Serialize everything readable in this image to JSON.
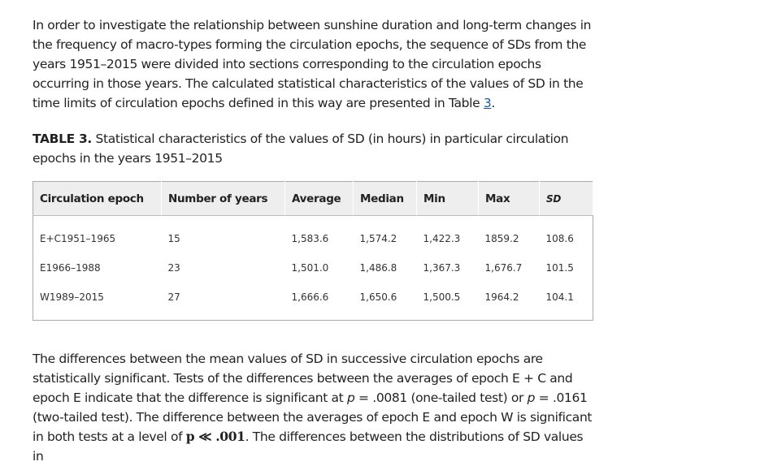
{
  "paragraphs": [
    {
      "runs": [
        "In order to investigate the relationship between sunshine duration and long-term changes in the frequency of macro-types forming the circulation epochs, the sequence of SDs from the years 1951–2015 were divided into sections corresponding to the circulation epochs occurring in those years. The calculated statistical characteristics of the values of SD in the time limits of circulation epochs defined in this way are presented in Table ",
        "3",
        "."
      ]
    },
    {
      "runs": [
        "The differences between the mean values of SD in successive circulation epochs are statistically significant. Tests of the differences between the averages of epoch E + C and epoch E indicate that the difference is significant at ",
        "p",
        " = .0081 (one-tailed test) or ",
        "p",
        " = .0161 (two-tailed test). The difference between the averages of epoch E and epoch W is significant in both tests at a level of ",
        "p ≪ .001",
        ". The differences between the distributions of SD values in"
      ]
    }
  ],
  "table": {
    "label": "TABLE 3.",
    "caption": "Statistical characteristics of the values of SD (in hours) in particular circulation epochs in the years 1951–2015",
    "headers": [
      "Circulation epoch",
      "Number of years",
      "Average",
      "Median",
      "Min",
      "Max",
      "SD"
    ],
    "rows": [
      [
        "E+C1951–1965",
        "15",
        "1,583.6",
        "1,574.2",
        "1,422.3",
        "1859.2",
        "108.6"
      ],
      [
        "E1966–1988",
        "23",
        "1,501.0",
        "1,486.8",
        "1,367.3",
        "1,676.7",
        "101.5"
      ],
      [
        "W1989–2015",
        "27",
        "1,666.6",
        "1,650.6",
        "1,500.5",
        "1964.2",
        "104.1"
      ]
    ]
  }
}
